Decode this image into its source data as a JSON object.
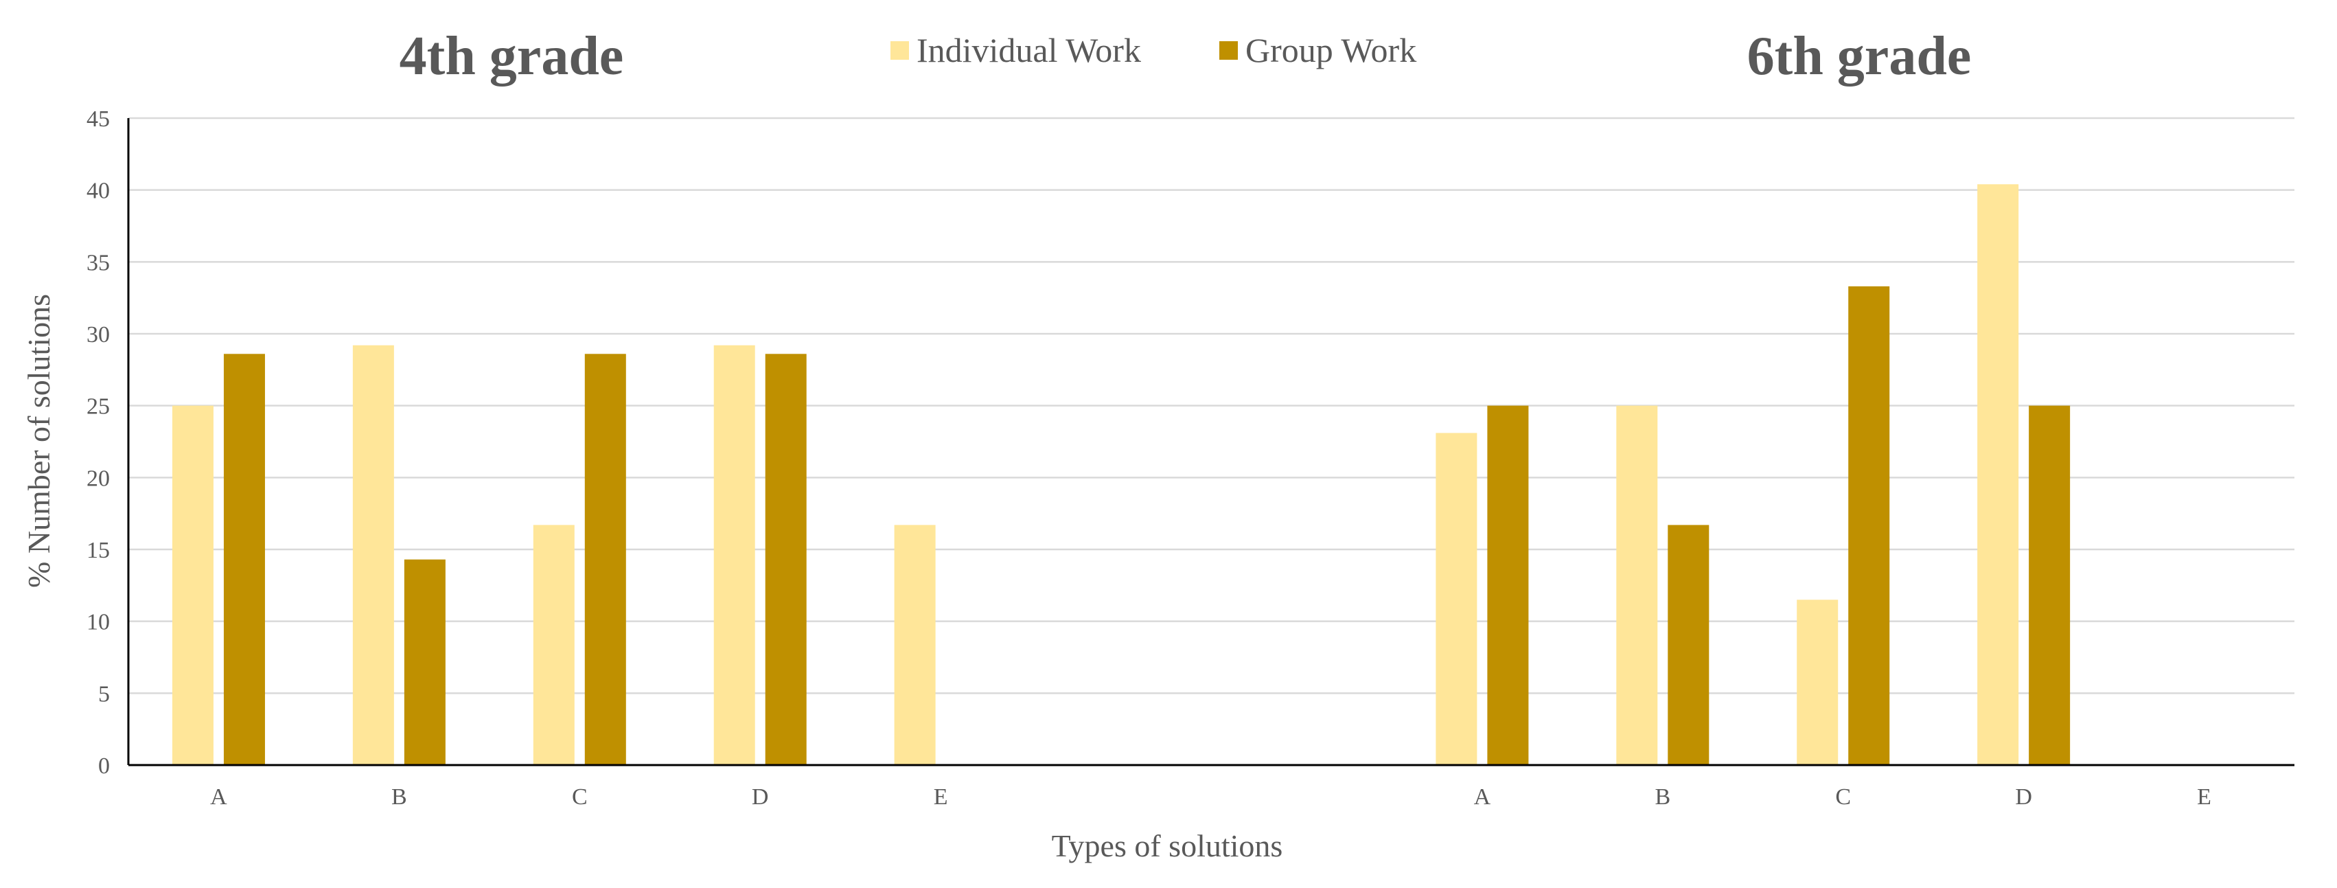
{
  "chart_data": {
    "type": "bar",
    "xlabel": "Types of solutions",
    "ylabel": "% Number of solutions",
    "ylim": [
      0,
      45
    ],
    "yticks": [
      0,
      5,
      10,
      15,
      20,
      25,
      30,
      35,
      40,
      45
    ],
    "grid": true,
    "legend_position": "top-center",
    "colors": {
      "individual": "#FFE699",
      "group": "#BF9000",
      "grid": "#D9D9D9",
      "axis": "#000000",
      "text": "#595959"
    },
    "series_names": [
      "Individual Work",
      "Group Work"
    ],
    "panels": [
      {
        "title": "4th grade",
        "categories": [
          "A",
          "B",
          "C",
          "D",
          "E"
        ],
        "series": [
          {
            "name": "Individual Work",
            "values": [
              25.0,
              29.2,
              16.7,
              29.2,
              16.7
            ]
          },
          {
            "name": "Group Work",
            "values": [
              28.6,
              14.3,
              28.6,
              28.6,
              0
            ]
          }
        ]
      },
      {
        "title": "6th grade",
        "categories": [
          "A",
          "B",
          "C",
          "D",
          "E"
        ],
        "series": [
          {
            "name": "Individual Work",
            "values": [
              23.1,
              25.0,
              11.5,
              40.4,
              0
            ]
          },
          {
            "name": "Group Work",
            "values": [
              25.0,
              16.7,
              33.3,
              25.0,
              0
            ]
          }
        ]
      }
    ]
  }
}
